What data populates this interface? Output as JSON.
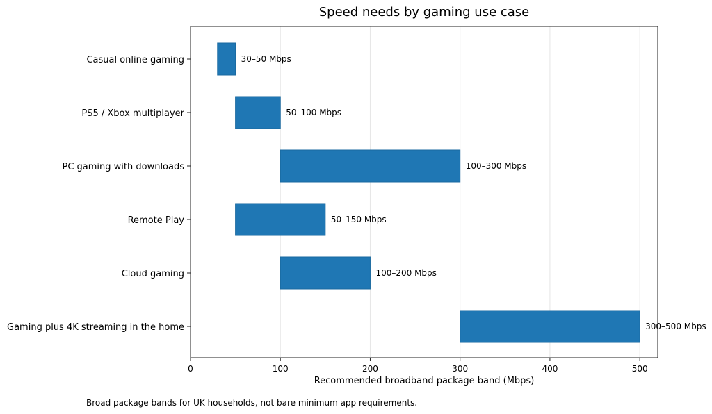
{
  "chart_data": {
    "type": "bar",
    "orientation": "horizontal-range",
    "title": "Speed needs by gaming use case",
    "xlabel": "Recommended broadband package band (Mbps)",
    "ylabel": "",
    "xlim": [
      0,
      520
    ],
    "xticks": [
      0,
      100,
      200,
      300,
      400,
      500
    ],
    "grid": "x",
    "bar_color": "#1f77b4",
    "categories": [
      "Casual online gaming",
      "PS5 / Xbox multiplayer",
      "PC gaming with downloads",
      "Remote Play",
      "Cloud gaming",
      "Gaming plus 4K streaming in the home"
    ],
    "ranges": [
      [
        30,
        50
      ],
      [
        50,
        100
      ],
      [
        100,
        300
      ],
      [
        50,
        150
      ],
      [
        100,
        200
      ],
      [
        300,
        500
      ]
    ],
    "labels": [
      "30–50 Mbps",
      "50–100 Mbps",
      "100–300 Mbps",
      "50–150 Mbps",
      "100–200 Mbps",
      "300–500 Mbps"
    ]
  },
  "footnote": "Broad package bands for UK households, not bare minimum app requirements."
}
